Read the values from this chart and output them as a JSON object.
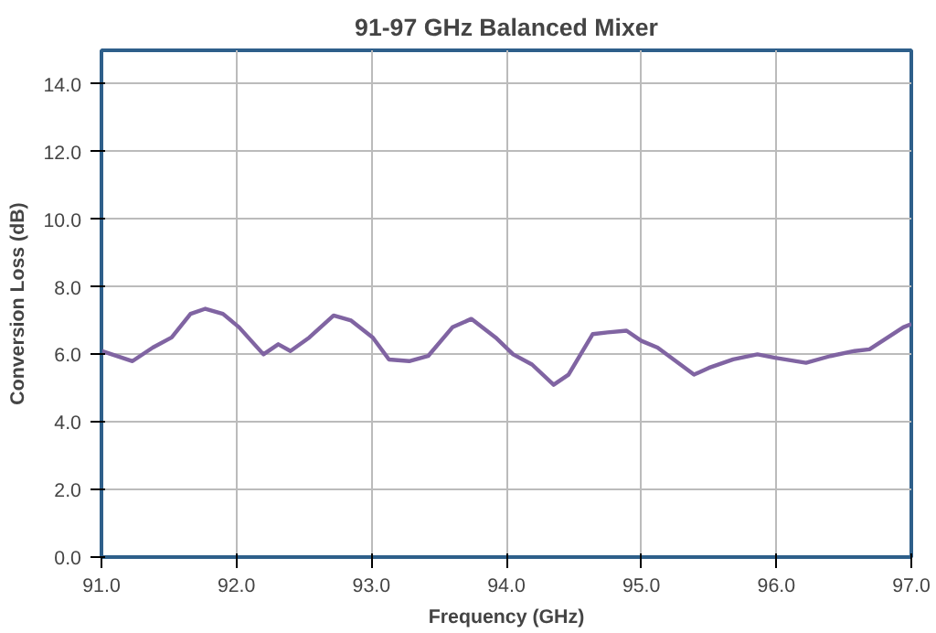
{
  "chart_data": {
    "type": "line",
    "title": "91-97 GHz Balanced Mixer",
    "xlabel": "Frequency (GHz)",
    "ylabel": "Conversion Loss (dB)",
    "xlim": [
      91,
      97
    ],
    "ylim": [
      0,
      15
    ],
    "xticks": [
      {
        "value": 91,
        "label": "91.0"
      },
      {
        "value": 92,
        "label": "92.0"
      },
      {
        "value": 93,
        "label": "93.0"
      },
      {
        "value": 94,
        "label": "94.0"
      },
      {
        "value": 95,
        "label": "95.0"
      },
      {
        "value": 96,
        "label": "96.0"
      },
      {
        "value": 97,
        "label": "97.0"
      }
    ],
    "yticks": [
      {
        "value": 0,
        "label": "0.0"
      },
      {
        "value": 2,
        "label": "2.0"
      },
      {
        "value": 4,
        "label": "4.0"
      },
      {
        "value": 6,
        "label": "6.0"
      },
      {
        "value": 8,
        "label": "8.0"
      },
      {
        "value": 10,
        "label": "10.0"
      },
      {
        "value": 12,
        "label": "12.0"
      },
      {
        "value": 14,
        "label": "14.0"
      }
    ],
    "grid": true,
    "line_style": "solid",
    "series": [
      {
        "color": "#8064a2",
        "x": [
          91.0,
          91.23,
          91.38,
          91.52,
          91.66,
          91.77,
          91.9,
          92.02,
          92.2,
          92.31,
          92.4,
          92.54,
          92.72,
          92.85,
          93.01,
          93.13,
          93.28,
          93.42,
          93.6,
          93.74,
          93.92,
          94.05,
          94.19,
          94.35,
          94.46,
          94.64,
          94.75,
          94.89,
          95.0,
          95.12,
          95.39,
          95.5,
          95.68,
          95.86,
          95.99,
          96.22,
          96.4,
          96.58,
          96.69,
          96.94,
          97.0
        ],
        "values": [
          6.1,
          5.8,
          6.2,
          6.5,
          7.2,
          7.35,
          7.2,
          6.8,
          6.0,
          6.3,
          6.1,
          6.5,
          7.15,
          7.0,
          6.5,
          5.85,
          5.8,
          5.95,
          6.8,
          7.05,
          6.5,
          6.0,
          5.7,
          5.1,
          5.4,
          6.6,
          6.65,
          6.7,
          6.4,
          6.2,
          5.4,
          5.6,
          5.85,
          6.0,
          5.9,
          5.75,
          5.95,
          6.1,
          6.15,
          6.8,
          6.9
        ]
      }
    ]
  }
}
